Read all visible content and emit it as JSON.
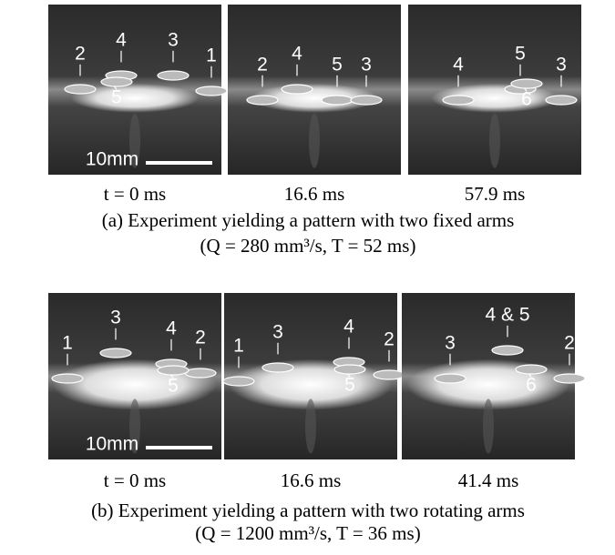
{
  "figure": {
    "panels": [
      {
        "images": [
          {
            "time": "t = 0 ms",
            "scale": "10mm",
            "labels": [
              "2",
              "4",
              "3",
              "1",
              "5"
            ]
          },
          {
            "time": "16.6 ms",
            "labels": [
              "2",
              "4",
              "5",
              "3"
            ]
          },
          {
            "time": "57.9 ms",
            "labels": [
              "4",
              "5",
              "3",
              "6"
            ]
          }
        ],
        "caption": "(a) Experiment yielding a pattern with two fixed arms",
        "params": "(Q = 280 mm³/s, T = 52 ms)"
      },
      {
        "images": [
          {
            "time": "t = 0 ms",
            "scale": "10mm",
            "labels": [
              "1",
              "3",
              "4",
              "2",
              "5"
            ]
          },
          {
            "time": "16.6 ms",
            "labels": [
              "1",
              "3",
              "4",
              "2",
              "5"
            ]
          },
          {
            "time": "41.4 ms",
            "labels": [
              "4 & 5",
              "3",
              "2",
              "6"
            ]
          }
        ],
        "caption": "(b) Experiment yielding a pattern with two rotating arms",
        "params": "(Q = 1200 mm³/s, T = 36 ms)"
      }
    ]
  }
}
